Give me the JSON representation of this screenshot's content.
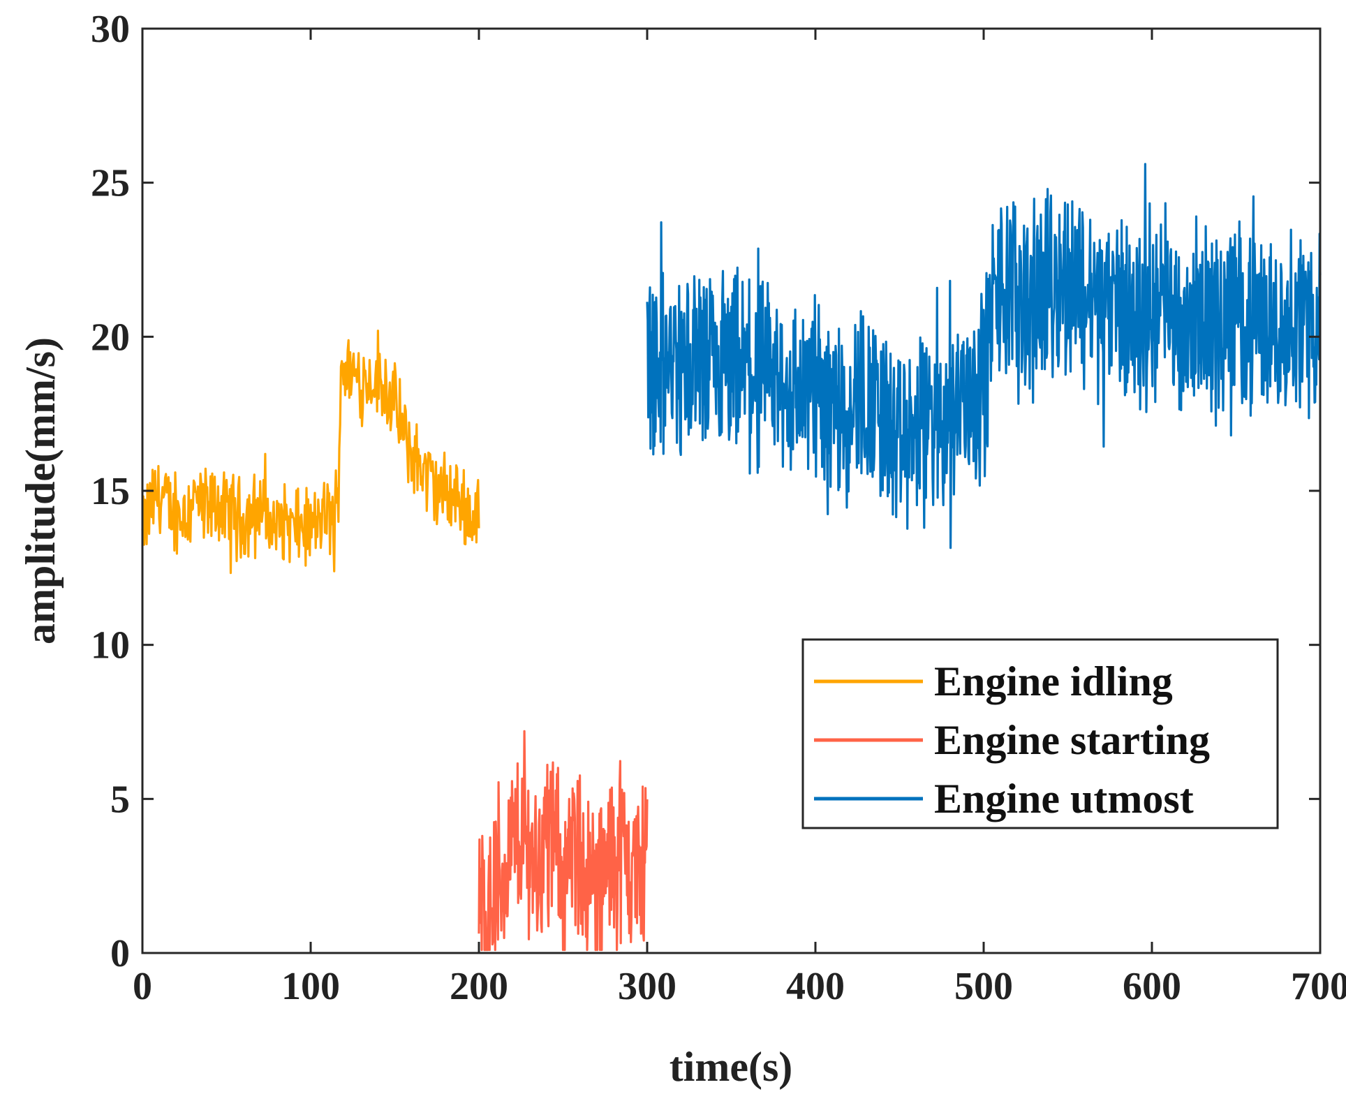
{
  "chart_data": {
    "type": "line",
    "title": "",
    "xlabel": "time(s)",
    "ylabel": "amplitude(mm/s)",
    "xlim": [
      0,
      700
    ],
    "ylim": [
      0,
      30
    ],
    "xticks": [
      "0",
      "100",
      "200",
      "300",
      "400",
      "500",
      "600",
      "700"
    ],
    "yticks": [
      "0",
      "5",
      "10",
      "15",
      "20",
      "25",
      "30"
    ],
    "grid": false,
    "legend_position": "bottom-right",
    "series": [
      {
        "name": "Engine idling",
        "color": "#FFA500",
        "x": [
          0,
          5,
          10,
          15,
          20,
          25,
          30,
          35,
          40,
          45,
          50,
          55,
          60,
          65,
          70,
          75,
          80,
          85,
          90,
          95,
          100,
          105,
          110,
          115,
          116,
          118,
          120,
          125,
          130,
          135,
          140,
          145,
          150,
          155,
          160,
          165,
          170,
          175,
          180,
          185,
          190,
          195,
          200
        ],
        "y": [
          13.5,
          14.6,
          14.9,
          14.5,
          14.2,
          14.3,
          14.8,
          14.5,
          14.4,
          14.6,
          14.2,
          14.4,
          14.0,
          14.3,
          14.5,
          14.1,
          13.8,
          14.0,
          13.7,
          13.9,
          13.6,
          14.0,
          14.2,
          14.0,
          14.1,
          19.3,
          19.0,
          18.8,
          18.5,
          18.7,
          18.6,
          18.3,
          17.8,
          16.8,
          16.2,
          15.9,
          15.4,
          15.0,
          15.0,
          14.8,
          14.6,
          14.2,
          14.5
        ]
      },
      {
        "name": "Engine starting",
        "color": "#FF6347",
        "x": [
          200,
          205,
          210,
          215,
          220,
          225,
          230,
          235,
          240,
          245,
          250,
          255,
          260,
          265,
          270,
          275,
          280,
          285,
          290,
          295,
          300
        ],
        "y": [
          1.5,
          1.6,
          2.0,
          2.5,
          3.5,
          3.8,
          3.5,
          3.0,
          3.7,
          3.6,
          2.5,
          2.8,
          3.6,
          2.2,
          2.0,
          2.5,
          3.5,
          3.2,
          2.8,
          2.5,
          3.5
        ]
      },
      {
        "name": "Engine utmost",
        "color": "#0072BD",
        "x": [
          300,
          310,
          320,
          330,
          340,
          350,
          360,
          370,
          380,
          390,
          400,
          410,
          420,
          430,
          440,
          450,
          460,
          470,
          480,
          490,
          500,
          505,
          510,
          520,
          530,
          540,
          550,
          560,
          570,
          580,
          590,
          600,
          610,
          620,
          630,
          640,
          650,
          660,
          670,
          680,
          690,
          700
        ],
        "y": [
          19.5,
          19.2,
          19.0,
          19.4,
          18.8,
          18.5,
          18.9,
          18.7,
          18.4,
          18.3,
          18.2,
          18.0,
          17.9,
          18.1,
          17.5,
          16.2,
          16.8,
          17.3,
          17.7,
          18.2,
          18.3,
          21.0,
          21.3,
          21.6,
          21.2,
          21.8,
          22.0,
          21.5,
          20.8,
          21.0,
          20.9,
          21.2,
          20.7,
          20.5,
          20.9,
          20.3,
          20.8,
          20.6,
          20.3,
          20.7,
          20.4,
          20.6
        ]
      }
    ]
  }
}
